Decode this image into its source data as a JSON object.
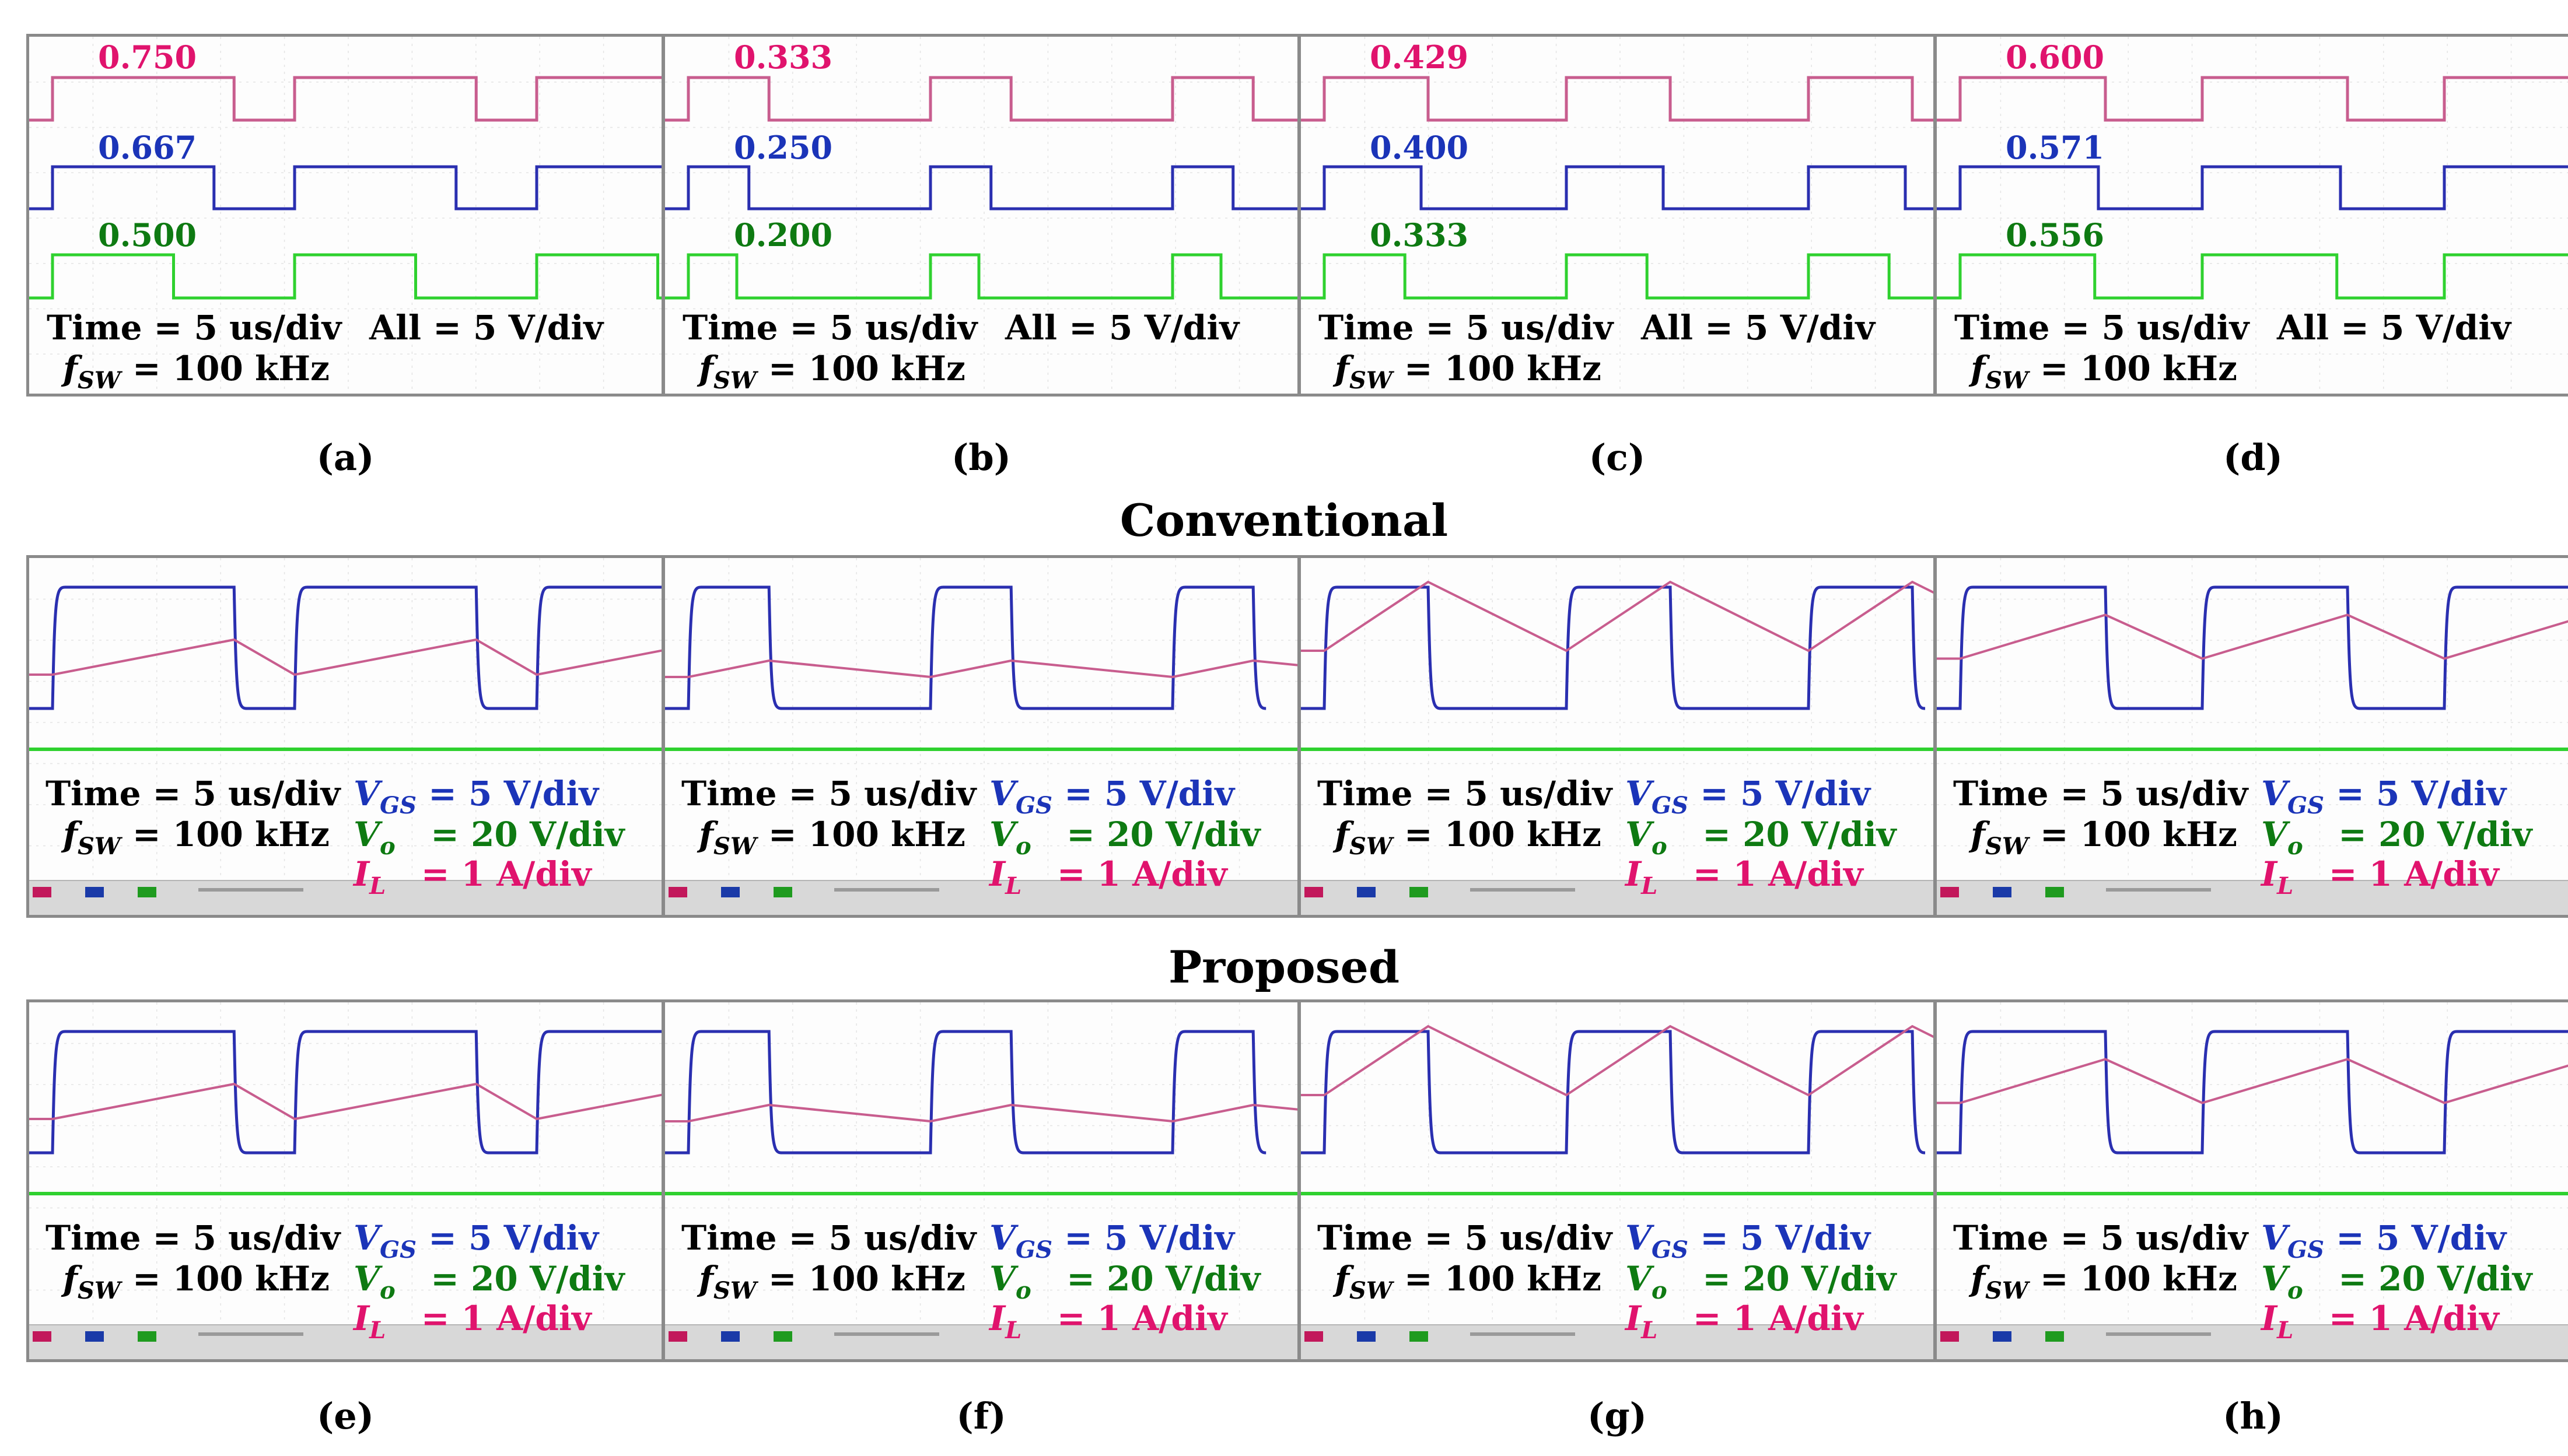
{
  "colors": {
    "pink": "#e0136d",
    "blue": "#1b34b8",
    "green": "#0e7a12",
    "trace_green": "#2fd12f",
    "trace_blue": "#2a2fb0",
    "trace_pink": "#c85d8e"
  },
  "texts": {
    "time": "Time = 5 us/div",
    "all": "All = 5 V/div",
    "fsw_sym": "f",
    "fsw_sub": "SW",
    "fsw_val": " = 100 kHz",
    "vgs_sym": "V",
    "vgs_sub": "GS",
    "vgs_val": " = 5 V/div",
    "vo_sym": "V",
    "vo_sub": "o",
    "vo_val": "   = 20 V/div",
    "il_sym": "I",
    "il_sub": "L",
    "il_val": "   = 1 A/div"
  },
  "row_labels": {
    "conventional": "Conventional",
    "proposed": "Proposed"
  },
  "captions": [
    "(a)",
    "(b)",
    "(c)",
    "(d)",
    "(e)",
    "(f)",
    "(g)",
    "(h)"
  ],
  "chart_data": [
    {
      "type": "line",
      "panel": "(a)",
      "time_per_div": "5 us",
      "volts_per_div": "5 V",
      "fsw": "100 kHz",
      "series": [
        {
          "name": "pink",
          "duty": 0.75,
          "label": "0.750"
        },
        {
          "name": "blue",
          "duty": 0.667,
          "label": "0.667"
        },
        {
          "name": "green",
          "duty": 0.5,
          "label": "0.500"
        }
      ]
    },
    {
      "type": "line",
      "panel": "(b)",
      "time_per_div": "5 us",
      "volts_per_div": "5 V",
      "fsw": "100 kHz",
      "series": [
        {
          "name": "pink",
          "duty": 0.333,
          "label": "0.333"
        },
        {
          "name": "blue",
          "duty": 0.25,
          "label": "0.250"
        },
        {
          "name": "green",
          "duty": 0.2,
          "label": "0.200"
        }
      ]
    },
    {
      "type": "line",
      "panel": "(c)",
      "time_per_div": "5 us",
      "volts_per_div": "5 V",
      "fsw": "100 kHz",
      "series": [
        {
          "name": "pink",
          "duty": 0.429,
          "label": "0.429"
        },
        {
          "name": "blue",
          "duty": 0.4,
          "label": "0.400"
        },
        {
          "name": "green",
          "duty": 0.333,
          "label": "0.333"
        }
      ]
    },
    {
      "type": "line",
      "panel": "(d)",
      "time_per_div": "5 us",
      "volts_per_div": "5 V",
      "fsw": "100 kHz",
      "series": [
        {
          "name": "pink",
          "duty": 0.6,
          "label": "0.600"
        },
        {
          "name": "blue",
          "duty": 0.571,
          "label": "0.571"
        },
        {
          "name": "green",
          "duty": 0.556,
          "label": "0.556"
        }
      ]
    },
    {
      "type": "line",
      "panel": "conventional-(a)",
      "duty": 0.75,
      "series": [
        "V_GS",
        "V_o",
        "I_L"
      ]
    },
    {
      "type": "line",
      "panel": "conventional-(b)",
      "duty": 0.333,
      "series": [
        "V_GS",
        "V_o",
        "I_L"
      ]
    },
    {
      "type": "line",
      "panel": "conventional-(c)",
      "duty": 0.429,
      "series": [
        "V_GS",
        "V_o",
        "I_L"
      ]
    },
    {
      "type": "line",
      "panel": "conventional-(d)",
      "duty": 0.6,
      "series": [
        "V_GS",
        "V_o",
        "I_L"
      ]
    },
    {
      "type": "line",
      "panel": "(e)",
      "duty": 0.75,
      "series": [
        "V_GS",
        "V_o",
        "I_L"
      ]
    },
    {
      "type": "line",
      "panel": "(f)",
      "duty": 0.333,
      "series": [
        "V_GS",
        "V_o",
        "I_L"
      ]
    },
    {
      "type": "line",
      "panel": "(g)",
      "duty": 0.429,
      "series": [
        "V_GS",
        "V_o",
        "I_L"
      ]
    },
    {
      "type": "line",
      "panel": "(h)",
      "duty": 0.6,
      "series": [
        "V_GS",
        "V_o",
        "I_L"
      ]
    }
  ]
}
